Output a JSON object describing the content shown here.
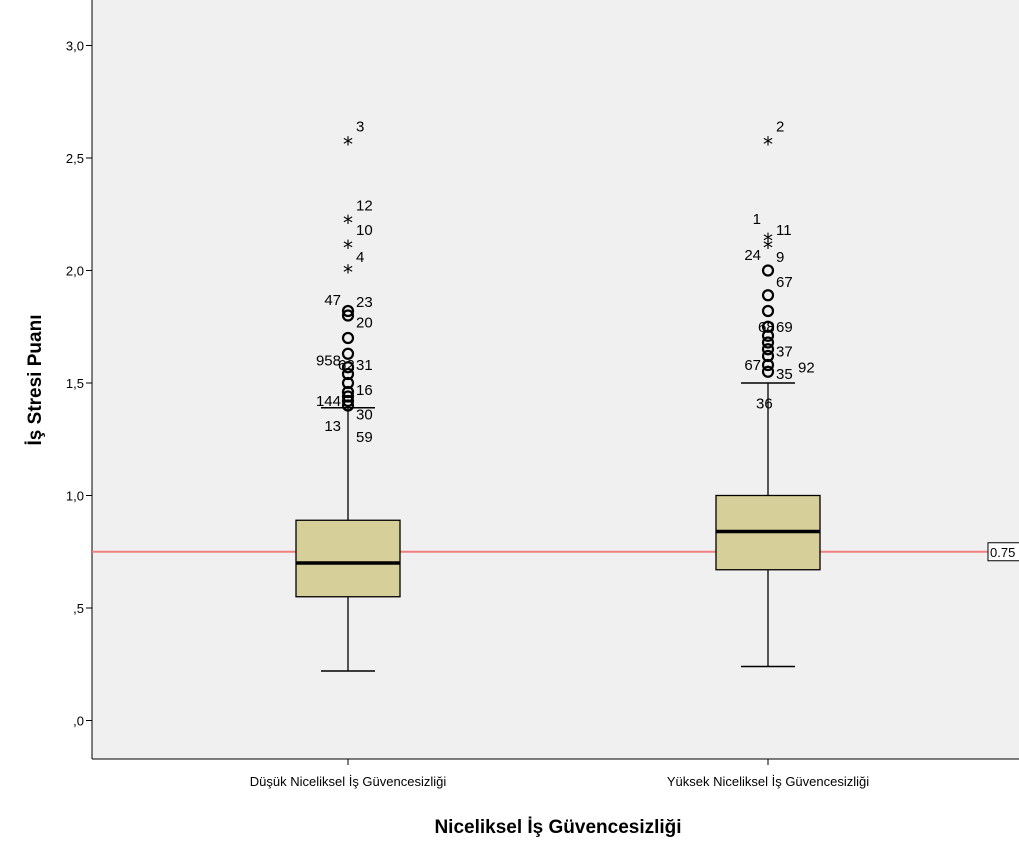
{
  "chart_data": {
    "type": "boxplot",
    "xlabel": "Niceliksel İş Güvencesizliği",
    "ylabel": "İş Stresi Puanı",
    "ylim": [
      -0.17,
      3.17
    ],
    "yticks": [
      {
        "value": 0.0,
        "label": ",0"
      },
      {
        "value": 0.5,
        "label": ",5"
      },
      {
        "value": 1.0,
        "label": "1,0"
      },
      {
        "value": 1.5,
        "label": "1,5"
      },
      {
        "value": 2.0,
        "label": "2,0"
      },
      {
        "value": 2.5,
        "label": "2,5"
      },
      {
        "value": 3.0,
        "label": "3,0"
      }
    ],
    "reference_line": {
      "value": 0.75,
      "label": "0.75",
      "color": "#f08080"
    },
    "colors": {
      "box_fill": "#d6cf9a",
      "plot_bg": "#f0f0f0"
    },
    "groups": [
      {
        "category": "Düşük Niceliksel İş Güvencesizliği",
        "whisker_low": 0.22,
        "q1": 0.55,
        "median": 0.7,
        "q3": 0.89,
        "whisker_high": 1.39,
        "outliers": [
          {
            "type": "extreme",
            "y": 2.57
          },
          {
            "type": "extreme",
            "y": 2.22
          },
          {
            "type": "extreme",
            "y": 2.11
          },
          {
            "type": "extreme",
            "y": 2.0
          },
          {
            "type": "outlier",
            "y": 1.82
          },
          {
            "type": "outlier",
            "y": 1.8
          },
          {
            "type": "outlier",
            "y": 1.7
          },
          {
            "type": "outlier",
            "y": 1.63
          },
          {
            "type": "outlier",
            "y": 1.57
          },
          {
            "type": "outlier",
            "y": 1.54
          },
          {
            "type": "outlier",
            "y": 1.5
          },
          {
            "type": "outlier",
            "y": 1.46
          },
          {
            "type": "outlier",
            "y": 1.44
          },
          {
            "type": "outlier",
            "y": 1.42
          },
          {
            "type": "outlier",
            "y": 1.4
          }
        ],
        "case_labels": [
          {
            "text": "3",
            "y": 2.64,
            "side": "right"
          },
          {
            "text": "12",
            "y": 2.29,
            "side": "right"
          },
          {
            "text": "10",
            "y": 2.18,
            "side": "right"
          },
          {
            "text": "4",
            "y": 2.06,
            "side": "right"
          },
          {
            "text": "47",
            "y": 1.87,
            "side": "left"
          },
          {
            "text": "23",
            "y": 1.86,
            "side": "right"
          },
          {
            "text": "20",
            "y": 1.77,
            "side": "right"
          },
          {
            "text": "958",
            "y": 1.6,
            "side": "left"
          },
          {
            "text": "62",
            "y": 1.58,
            "side": "mid"
          },
          {
            "text": "31",
            "y": 1.58,
            "side": "right"
          },
          {
            "text": "16",
            "y": 1.47,
            "side": "right"
          },
          {
            "text": "144",
            "y": 1.42,
            "side": "left"
          },
          {
            "text": "30",
            "y": 1.36,
            "side": "right"
          },
          {
            "text": "13",
            "y": 1.31,
            "side": "left"
          },
          {
            "text": "59",
            "y": 1.26,
            "side": "right"
          }
        ]
      },
      {
        "category": "Yüksek Niceliksel İş Güvencesizliği",
        "whisker_low": 0.24,
        "q1": 0.67,
        "median": 0.84,
        "q3": 1.0,
        "whisker_high": 1.5,
        "outliers": [
          {
            "type": "extreme",
            "y": 2.57
          },
          {
            "type": "extreme",
            "y": 2.14
          },
          {
            "type": "extreme",
            "y": 2.11
          },
          {
            "type": "outlier",
            "y": 2.0
          },
          {
            "type": "outlier",
            "y": 1.89
          },
          {
            "type": "outlier",
            "y": 1.82
          },
          {
            "type": "outlier",
            "y": 1.75
          },
          {
            "type": "outlier",
            "y": 1.71
          },
          {
            "type": "outlier",
            "y": 1.68
          },
          {
            "type": "outlier",
            "y": 1.65
          },
          {
            "type": "outlier",
            "y": 1.62
          },
          {
            "type": "outlier",
            "y": 1.58
          },
          {
            "type": "outlier",
            "y": 1.55
          }
        ],
        "case_labels": [
          {
            "text": "2",
            "y": 2.64,
            "side": "right"
          },
          {
            "text": "1",
            "y": 2.23,
            "side": "left"
          },
          {
            "text": "11",
            "y": 2.18,
            "side": "right"
          },
          {
            "text": "24",
            "y": 2.07,
            "side": "left"
          },
          {
            "text": "9",
            "y": 2.06,
            "side": "right"
          },
          {
            "text": "67",
            "y": 1.95,
            "side": "right"
          },
          {
            "text": "69",
            "y": 1.75,
            "side": "right"
          },
          {
            "text": "68",
            "y": 1.75,
            "side": "mid"
          },
          {
            "text": "37",
            "y": 1.64,
            "side": "right"
          },
          {
            "text": "67",
            "y": 1.58,
            "side": "left"
          },
          {
            "text": "92",
            "y": 1.57,
            "side": "farright"
          },
          {
            "text": "35",
            "y": 1.54,
            "side": "right"
          },
          {
            "text": "36",
            "y": 1.41,
            "side": "right2"
          }
        ]
      }
    ]
  }
}
